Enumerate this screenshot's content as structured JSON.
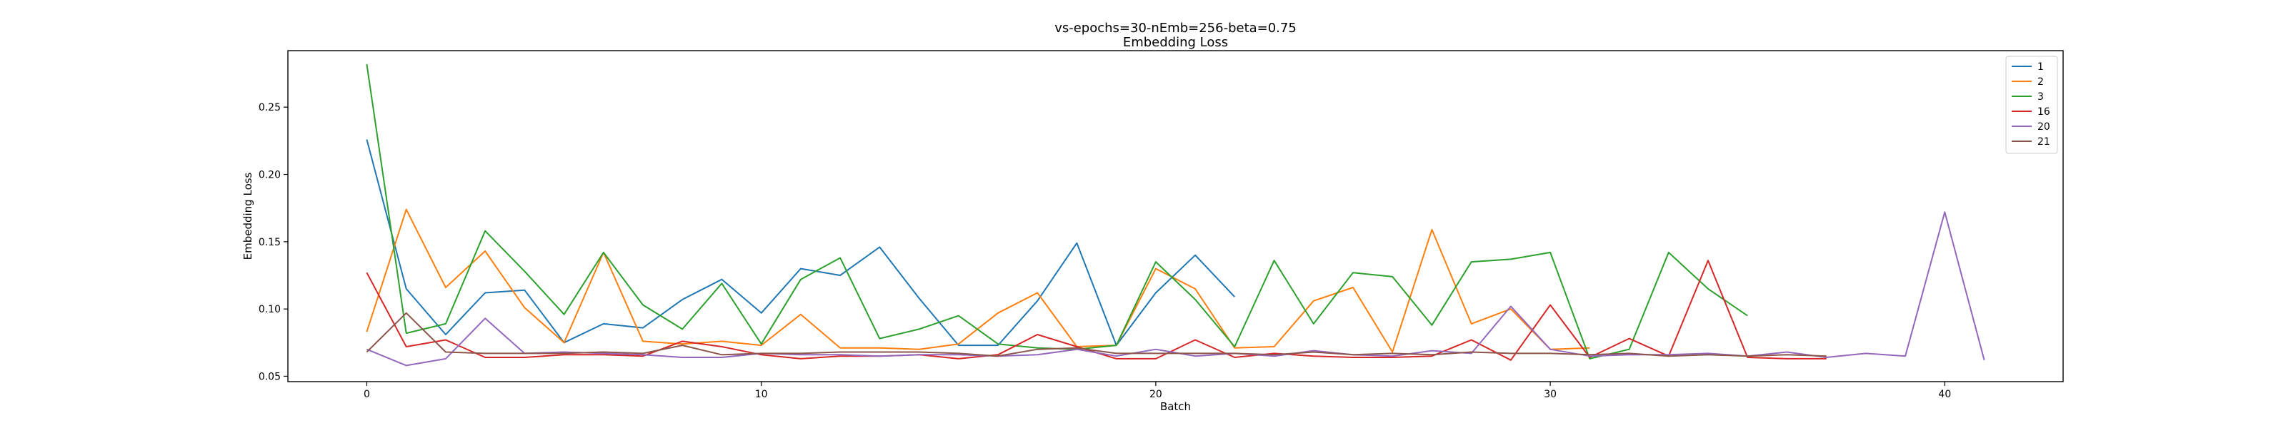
{
  "chart_data": {
    "type": "line",
    "title": "vs-epochs=30-nEmb=256-beta=0.75",
    "subtitle": "Embedding Loss",
    "xlabel": "Batch",
    "ylabel": "Embedding Loss",
    "xlim": [
      -2,
      43
    ],
    "ylim": [
      0.046,
      0.292
    ],
    "xticks": [
      0,
      10,
      20,
      30,
      40
    ],
    "yticks": [
      0.05,
      0.1,
      0.15,
      0.2,
      0.25
    ],
    "ytick_labels": [
      "0.05",
      "0.10",
      "0.15",
      "0.20",
      "0.25"
    ],
    "grid": false,
    "legend_position": "top-right",
    "series": [
      {
        "name": "1",
        "color": "#1f77b4",
        "y": [
          0.226,
          0.115,
          0.081,
          0.112,
          0.114,
          0.075,
          0.089,
          0.086,
          0.107,
          0.122,
          0.097,
          0.13,
          0.125,
          0.146,
          0.108,
          0.073,
          0.073,
          0.106,
          0.149,
          0.073,
          0.112,
          0.14,
          0.109
        ]
      },
      {
        "name": "2",
        "color": "#ff7f0e",
        "y": [
          0.083,
          0.174,
          0.116,
          0.143,
          0.101,
          0.075,
          0.142,
          0.076,
          0.074,
          0.076,
          0.073,
          0.096,
          0.071,
          0.071,
          0.07,
          0.074,
          0.097,
          0.112,
          0.072,
          0.073,
          0.13,
          0.115,
          0.071,
          0.072,
          0.106,
          0.116,
          0.068,
          0.159,
          0.089,
          0.1,
          0.07,
          0.071
        ]
      },
      {
        "name": "3",
        "color": "#2ca02c",
        "y": [
          0.282,
          0.082,
          0.089,
          0.158,
          0.128,
          0.096,
          0.142,
          0.103,
          0.085,
          0.119,
          0.074,
          0.122,
          0.138,
          0.078,
          0.085,
          0.095,
          0.074,
          0.071,
          0.07,
          0.073,
          0.135,
          0.107,
          0.072,
          0.136,
          0.089,
          0.127,
          0.124,
          0.088,
          0.135,
          0.137,
          0.142,
          0.063,
          0.07,
          0.142,
          0.115,
          0.095
        ]
      },
      {
        "name": "16",
        "color": "#d62728",
        "y": [
          0.127,
          0.072,
          0.077,
          0.064,
          0.064,
          0.066,
          0.066,
          0.065,
          0.076,
          0.072,
          0.066,
          0.063,
          0.065,
          0.065,
          0.066,
          0.063,
          0.066,
          0.081,
          0.072,
          0.063,
          0.063,
          0.077,
          0.064,
          0.067,
          0.065,
          0.064,
          0.064,
          0.065,
          0.077,
          0.062,
          0.103,
          0.064,
          0.078,
          0.065,
          0.136,
          0.064,
          0.063,
          0.063
        ]
      },
      {
        "name": "20",
        "color": "#9467bd",
        "y": [
          0.07,
          0.058,
          0.063,
          0.093,
          0.067,
          0.068,
          0.067,
          0.066,
          0.064,
          0.064,
          0.067,
          0.066,
          0.066,
          0.065,
          0.066,
          0.066,
          0.065,
          0.066,
          0.07,
          0.065,
          0.07,
          0.065,
          0.067,
          0.065,
          0.069,
          0.066,
          0.065,
          0.069,
          0.067,
          0.102,
          0.07,
          0.065,
          0.066,
          0.066,
          0.067,
          0.065,
          0.068,
          0.064,
          0.067,
          0.065,
          0.172,
          0.062
        ]
      },
      {
        "name": "21",
        "color": "#8c564b",
        "y": [
          0.068,
          0.097,
          0.068,
          0.067,
          0.067,
          0.067,
          0.068,
          0.067,
          0.073,
          0.066,
          0.067,
          0.067,
          0.068,
          0.068,
          0.068,
          0.067,
          0.065,
          0.07,
          0.071,
          0.067,
          0.067,
          0.067,
          0.067,
          0.066,
          0.068,
          0.066,
          0.067,
          0.066,
          0.068,
          0.067,
          0.067,
          0.066,
          0.067,
          0.065,
          0.066,
          0.065,
          0.066,
          0.065
        ]
      }
    ]
  }
}
